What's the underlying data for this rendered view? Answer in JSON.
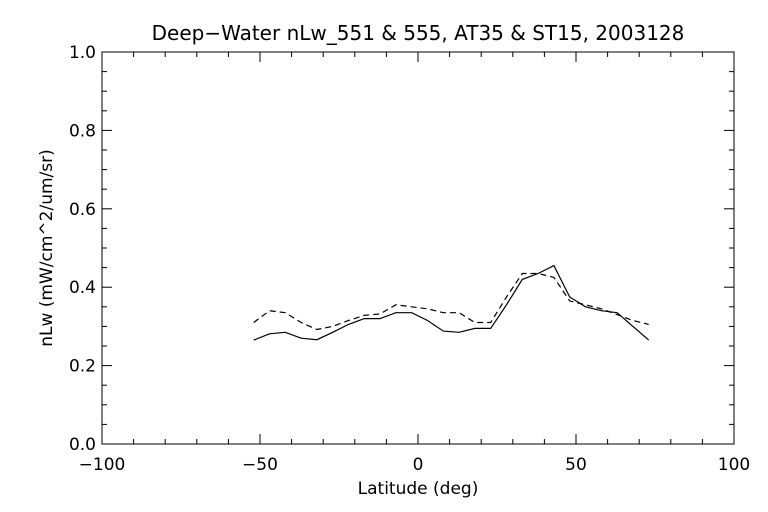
{
  "chart_data": {
    "type": "line",
    "title": "Deep−Water nLw_551 & 555, AT35 & ST15, 2003128",
    "xlabel": "Latitude (deg)",
    "ylabel": "nLw (mW/cm^2/um/sr)",
    "xlim": [
      -100,
      100
    ],
    "ylim": [
      0.0,
      1.0
    ],
    "x_ticks": [
      -100,
      -50,
      0,
      50,
      100
    ],
    "x_tick_labels": [
      "−100",
      "−50",
      "0",
      "50",
      "100"
    ],
    "y_ticks": [
      0.0,
      0.2,
      0.4,
      0.6,
      0.8,
      1.0
    ],
    "y_tick_labels": [
      "0.0",
      "0.2",
      "0.4",
      "0.6",
      "0.8",
      "1.0"
    ],
    "grid": false,
    "series": [
      {
        "style": "solid",
        "color": "#000000",
        "x": [
          -52,
          -47,
          -42,
          -37,
          -32,
          -27,
          -22,
          -17,
          -12,
          -7,
          -2,
          3,
          8,
          13,
          18,
          23,
          28,
          33,
          38,
          43,
          48,
          53,
          58,
          63,
          68,
          73
        ],
        "y": [
          0.265,
          0.281,
          0.285,
          0.27,
          0.266,
          0.285,
          0.305,
          0.32,
          0.32,
          0.335,
          0.335,
          0.315,
          0.288,
          0.285,
          0.295,
          0.295,
          0.355,
          0.42,
          0.435,
          0.455,
          0.375,
          0.35,
          0.34,
          0.335,
          0.3,
          0.265
        ]
      },
      {
        "style": "dashed",
        "color": "#000000",
        "x": [
          -52,
          -47,
          -42,
          -37,
          -32,
          -27,
          -22,
          -17,
          -12,
          -7,
          -2,
          3,
          8,
          13,
          18,
          23,
          28,
          33,
          38,
          43,
          48,
          53,
          58,
          63,
          68,
          73
        ],
        "y": [
          0.31,
          0.34,
          0.335,
          0.31,
          0.292,
          0.3,
          0.315,
          0.328,
          0.332,
          0.355,
          0.35,
          0.345,
          0.335,
          0.335,
          0.31,
          0.31,
          0.375,
          0.435,
          0.435,
          0.425,
          0.365,
          0.355,
          0.345,
          0.33,
          0.315,
          0.305
        ]
      }
    ]
  }
}
